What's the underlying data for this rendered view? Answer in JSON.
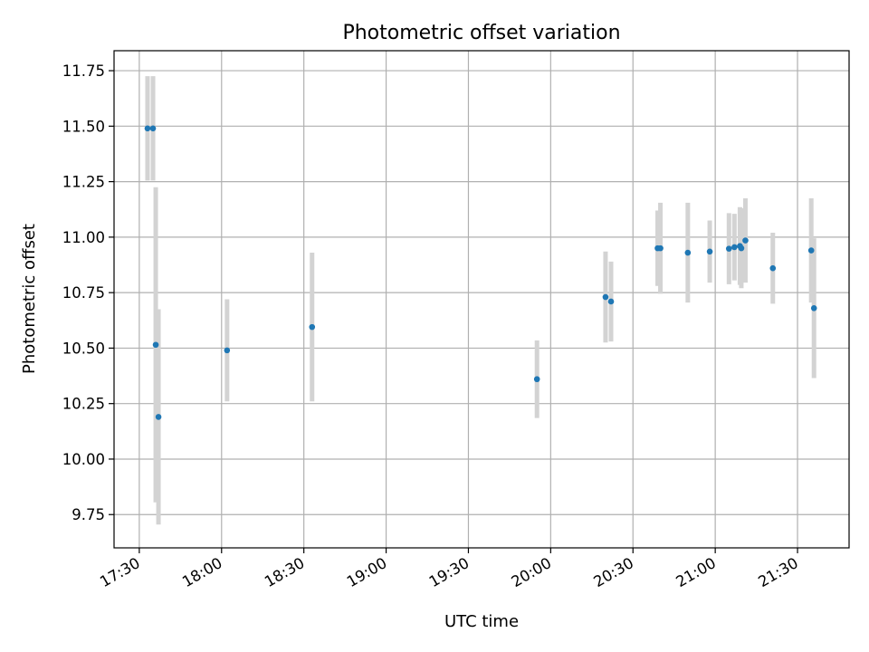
{
  "chart_data": {
    "type": "scatter",
    "title": "Photometric offset variation",
    "xlabel": "UTC time",
    "ylabel": "Photometric offset",
    "x_ticks": [
      "17:30",
      "18:00",
      "18:30",
      "19:00",
      "19:30",
      "20:00",
      "20:30",
      "21:00",
      "21:30"
    ],
    "y_ticks": [
      "9.75",
      "10.00",
      "10.25",
      "10.50",
      "10.75",
      "11.00",
      "11.25",
      "11.50",
      "11.75"
    ],
    "xlim": [
      "17:20.8",
      "21:48.8"
    ],
    "ylim": [
      9.6,
      11.84
    ],
    "grid": true,
    "colors": {
      "points": "#1f77b4",
      "errorbars": "#d3d3d3"
    },
    "series": [
      {
        "points": [
          {
            "t": "17:33",
            "y": 11.49,
            "err": 0.235
          },
          {
            "t": "17:35",
            "y": 11.49,
            "err": 0.235
          },
          {
            "t": "17:36",
            "y": 10.515,
            "err": 0.71
          },
          {
            "t": "17:37",
            "y": 10.19,
            "err": 0.485
          },
          {
            "t": "18:02",
            "y": 10.49,
            "err": 0.23
          },
          {
            "t": "18:33",
            "y": 10.595,
            "err": 0.335
          },
          {
            "t": "19:55",
            "y": 10.36,
            "err": 0.175
          },
          {
            "t": "20:20",
            "y": 10.73,
            "err": 0.205
          },
          {
            "t": "20:22",
            "y": 10.71,
            "err": 0.18
          },
          {
            "t": "20:39",
            "y": 10.95,
            "err": 0.17
          },
          {
            "t": "20:40",
            "y": 10.95,
            "err": 0.205
          },
          {
            "t": "20:50",
            "y": 10.93,
            "err": 0.225
          },
          {
            "t": "20:58",
            "y": 10.935,
            "err": 0.14
          },
          {
            "t": "21:05",
            "y": 10.948,
            "err": 0.16
          },
          {
            "t": "21:07",
            "y": 10.955,
            "err": 0.15
          },
          {
            "t": "21:09",
            "y": 10.96,
            "err": 0.175
          },
          {
            "t": "21:09.5",
            "y": 10.95,
            "err": 0.18
          },
          {
            "t": "21:11",
            "y": 10.985,
            "err": 0.19
          },
          {
            "t": "21:21",
            "y": 10.86,
            "err": 0.16
          },
          {
            "t": "21:35",
            "y": 10.94,
            "err": 0.235
          },
          {
            "t": "21:36",
            "y": 10.68,
            "err": 0.315
          }
        ]
      }
    ]
  }
}
